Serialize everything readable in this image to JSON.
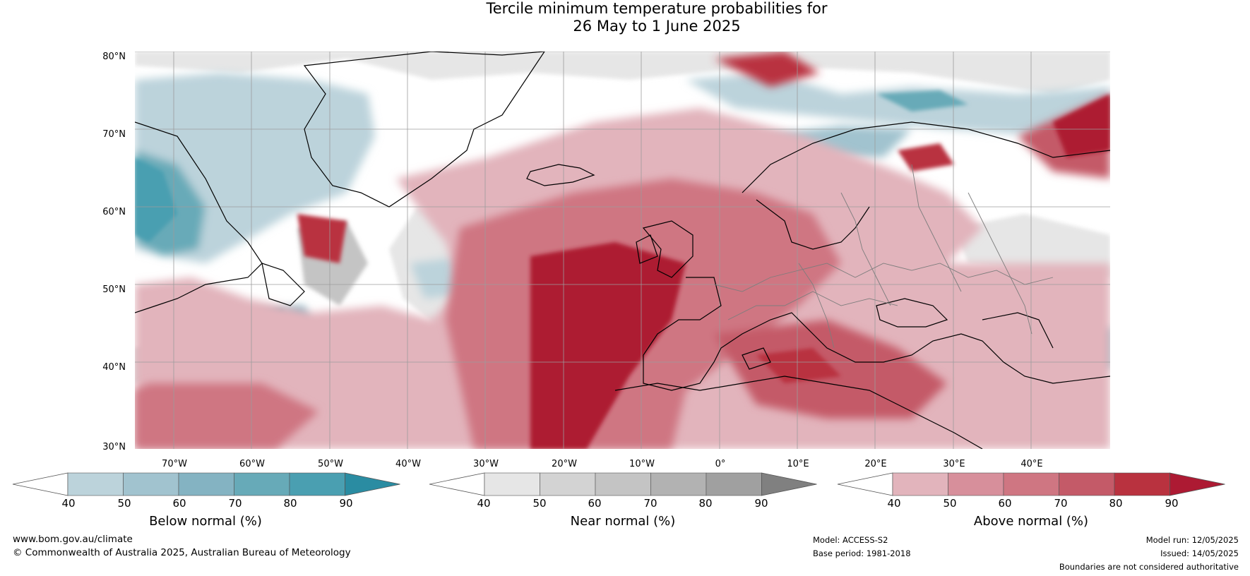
{
  "title": {
    "line1": "Tercile minimum temperature probabilities for",
    "line2": "26 May to 1 June 2025"
  },
  "map": {
    "lat_labels": [
      "80°N",
      "70°N",
      "60°N",
      "50°N",
      "40°N",
      "30°N"
    ],
    "lon_labels": [
      "70°W",
      "60°W",
      "50°W",
      "40°W",
      "30°W",
      "20°W",
      "10°W",
      "0°",
      "10°E",
      "20°E",
      "30°E",
      "40°E"
    ],
    "colors": {
      "below": [
        "#bcd3db",
        "#a1c3cf",
        "#84b3c2",
        "#67aab8",
        "#4a9fb1",
        "#2a8ca2"
      ],
      "near": [
        "#e6e6e6",
        "#d3d3d3",
        "#c4c4c4",
        "#b2b2b2",
        "#a0a0a0",
        "#808080"
      ],
      "above": [
        "#e2b4bc",
        "#d78f9b",
        "#cf7682",
        "#c45a68",
        "#b9323f",
        "#ad1a33"
      ]
    }
  },
  "colorbars": [
    {
      "id": "below",
      "title": "Below normal (%)",
      "ticks": [
        "40",
        "50",
        "60",
        "70",
        "80",
        "90"
      ]
    },
    {
      "id": "near",
      "title": "Near normal (%)",
      "ticks": [
        "40",
        "50",
        "60",
        "70",
        "80",
        "90"
      ]
    },
    {
      "id": "above",
      "title": "Above normal (%)",
      "ticks": [
        "40",
        "50",
        "60",
        "70",
        "80",
        "90"
      ]
    }
  ],
  "footer": {
    "website": "www.bom.gov.au/climate",
    "copyright": "© Commonwealth of Australia 2025, Australian Bureau of Meteorology",
    "model": "Model: ACCESS-S2",
    "base_period": "Base period: 1981-2018",
    "model_run": "Model run: 12/05/2025",
    "issued": "Issued: 14/05/2025",
    "disclaimer": "Boundaries are not considered authoritative"
  }
}
